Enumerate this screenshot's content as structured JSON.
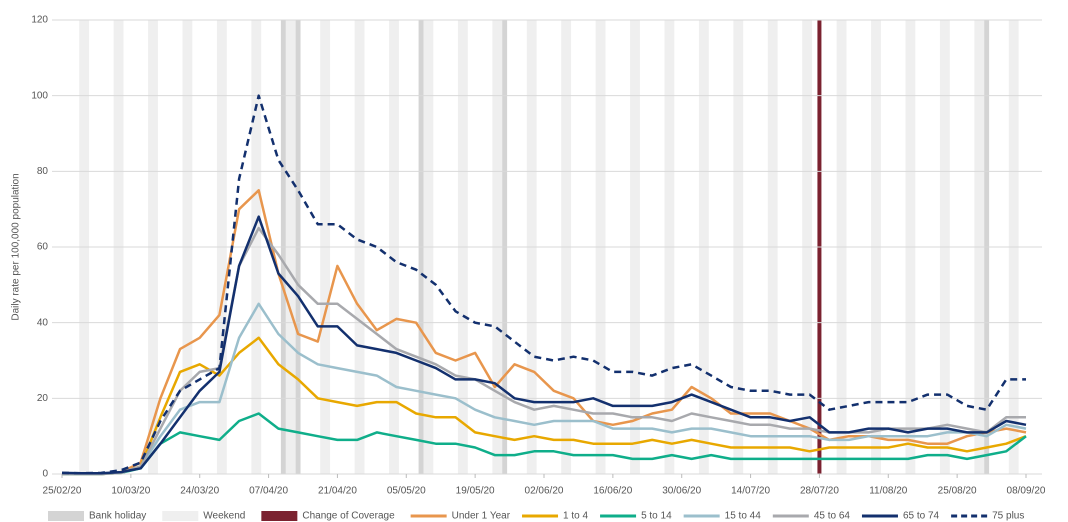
{
  "chart_data": {
    "type": "line",
    "y_label": "Daily rate per 100,000 population",
    "x": [
      "25/02/20",
      "29/02/20",
      "04/03/20",
      "08/03/20",
      "12/03/20",
      "16/03/20",
      "20/03/20",
      "24/03/20",
      "28/03/20",
      "01/04/20",
      "05/04/20",
      "09/04/20",
      "13/04/20",
      "17/04/20",
      "21/04/20",
      "25/04/20",
      "29/04/20",
      "03/05/20",
      "07/05/20",
      "11/05/20",
      "15/05/20",
      "19/05/20",
      "23/05/20",
      "27/05/20",
      "31/05/20",
      "04/06/20",
      "08/06/20",
      "12/06/20",
      "16/06/20",
      "20/06/20",
      "24/06/20",
      "28/06/20",
      "02/07/20",
      "06/07/20",
      "10/07/20",
      "14/07/20",
      "18/07/20",
      "22/07/20",
      "26/07/20",
      "30/07/20",
      "03/08/20",
      "07/08/20",
      "11/08/20",
      "15/08/20",
      "19/08/20",
      "23/08/20",
      "27/08/20",
      "31/08/20",
      "04/09/20",
      "08/09/20"
    ],
    "xlim": [
      "25/02/20",
      "08/09/20"
    ],
    "xticks": [
      "25/02/20",
      "10/03/20",
      "24/03/20",
      "07/04/20",
      "21/04/20",
      "05/05/20",
      "19/05/20",
      "02/06/20",
      "16/06/20",
      "30/06/20",
      "14/07/20",
      "28/07/20",
      "11/08/20",
      "25/08/20",
      "08/09/20"
    ],
    "ylim": [
      0,
      120
    ],
    "yticks": [
      0,
      20,
      40,
      60,
      80,
      100,
      120
    ],
    "grid": true,
    "background_legend": [
      {
        "name": "Bank holiday",
        "color": "#d4d4d4"
      },
      {
        "name": "Weekend",
        "color": "#efefef"
      },
      {
        "name": "Change of Coverage",
        "color": "#7b2230"
      }
    ],
    "bank_holidays": [
      "10/04/20",
      "13/04/20",
      "08/05/20",
      "25/05/20",
      "31/08/20"
    ],
    "coverage_change": "28/07/20",
    "series": [
      {
        "name": "Under 1 Year",
        "color": "#e8964d",
        "line_style": "solid",
        "values": [
          0,
          0,
          0,
          0.5,
          3,
          20,
          33,
          36,
          42,
          70,
          75,
          53,
          37,
          35,
          55,
          45,
          38,
          41,
          40,
          32,
          30,
          32,
          23,
          29,
          27,
          22,
          20,
          14,
          13,
          14,
          16,
          17,
          23,
          20,
          16,
          16,
          16,
          14,
          12,
          9,
          10,
          10,
          9,
          9,
          8,
          8,
          10,
          11,
          12,
          11
        ]
      },
      {
        "name": "1 to 4",
        "color": "#e8a800",
        "line_style": "solid",
        "values": [
          0,
          0,
          0,
          0.3,
          2,
          15,
          27,
          29,
          26,
          32,
          36,
          29,
          25,
          20,
          19,
          18,
          19,
          19,
          16,
          15,
          15,
          11,
          10,
          9,
          10,
          9,
          9,
          8,
          8,
          8,
          9,
          8,
          9,
          8,
          7,
          7,
          7,
          7,
          6,
          7,
          7,
          7,
          7,
          8,
          7,
          7,
          6,
          7,
          8,
          10
        ]
      },
      {
        "name": "5 to 14",
        "color": "#0fae8a",
        "line_style": "solid",
        "values": [
          0,
          0,
          0,
          0.3,
          1.5,
          8,
          11,
          10,
          9,
          14,
          16,
          12,
          11,
          10,
          9,
          9,
          11,
          10,
          9,
          8,
          8,
          7,
          5,
          5,
          6,
          6,
          5,
          5,
          5,
          4,
          4,
          5,
          4,
          5,
          4,
          4,
          4,
          4,
          4,
          4,
          4,
          4,
          4,
          4,
          5,
          5,
          4,
          5,
          6,
          10
        ]
      },
      {
        "name": "15 to 44",
        "color": "#9bbfcc",
        "line_style": "solid",
        "values": [
          0,
          0,
          0,
          0.3,
          2,
          10,
          17,
          19,
          19,
          36,
          45,
          37,
          32,
          29,
          28,
          27,
          26,
          23,
          22,
          21,
          20,
          17,
          15,
          14,
          13,
          14,
          14,
          14,
          12,
          12,
          12,
          11,
          12,
          12,
          11,
          10,
          10,
          10,
          10,
          9,
          9,
          10,
          10,
          10,
          10,
          11,
          11,
          10,
          13,
          12
        ]
      },
      {
        "name": "45 to 64",
        "color": "#a8a9ad",
        "line_style": "solid",
        "values": [
          0,
          0,
          0,
          0.3,
          2,
          12,
          22,
          27,
          28,
          55,
          65,
          58,
          50,
          45,
          45,
          41,
          37,
          33,
          31,
          29,
          26,
          25,
          22,
          19,
          17,
          18,
          17,
          16,
          16,
          15,
          15,
          14,
          16,
          15,
          14,
          13,
          13,
          12,
          12,
          11,
          11,
          11,
          12,
          12,
          12,
          13,
          12,
          11,
          15,
          15
        ]
      },
      {
        "name": "65 to 74",
        "color": "#13306e",
        "line_style": "solid",
        "values": [
          0.3,
          0.2,
          0.2,
          0.5,
          1.5,
          8,
          15,
          22,
          27,
          55,
          68,
          53,
          47,
          39,
          39,
          34,
          33,
          32,
          30,
          28,
          25,
          25,
          24,
          20,
          19,
          19,
          19,
          20,
          18,
          18,
          18,
          19,
          21,
          19,
          17,
          15,
          15,
          14,
          15,
          11,
          11,
          12,
          12,
          11,
          12,
          12,
          11,
          11,
          14,
          13
        ]
      },
      {
        "name": "75 plus",
        "color": "#13306e",
        "line_style": "dashed",
        "values": [
          0.3,
          0.2,
          0.3,
          1,
          3,
          14,
          22,
          25,
          28,
          78,
          100,
          83,
          75,
          66,
          66,
          62,
          60,
          56,
          54,
          50,
          43,
          40,
          39,
          35,
          31,
          30,
          31,
          30,
          27,
          27,
          26,
          28,
          29,
          26,
          23,
          22,
          22,
          21,
          21,
          17,
          18,
          19,
          19,
          19,
          21,
          21,
          18,
          17,
          25,
          25
        ]
      }
    ]
  }
}
